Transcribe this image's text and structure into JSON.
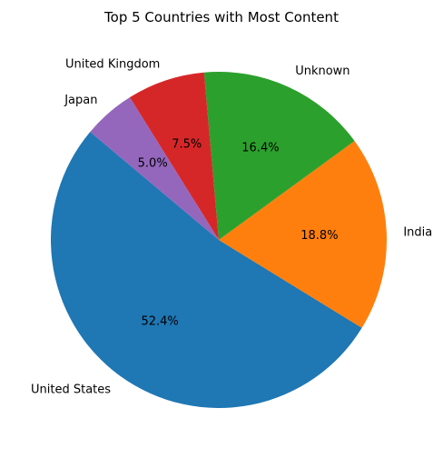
{
  "chart_data": {
    "type": "pie",
    "title": "Top 5 Countries with Most Content",
    "start_angle_deg": 140,
    "direction": "counterclockwise",
    "slices": [
      {
        "label": "United States",
        "percent_label": "52.4%",
        "value": 52.4,
        "color": "#1f77b4"
      },
      {
        "label": "India",
        "percent_label": "18.8%",
        "value": 18.8,
        "color": "#ff7f0e"
      },
      {
        "label": "Unknown",
        "percent_label": "16.4%",
        "value": 16.4,
        "color": "#2ca02c"
      },
      {
        "label": "United Kingdom",
        "percent_label": "7.5%",
        "value": 7.5,
        "color": "#d62728"
      },
      {
        "label": "Japan",
        "percent_label": "5.0%",
        "value": 5.0,
        "color": "#9467bd"
      }
    ]
  }
}
